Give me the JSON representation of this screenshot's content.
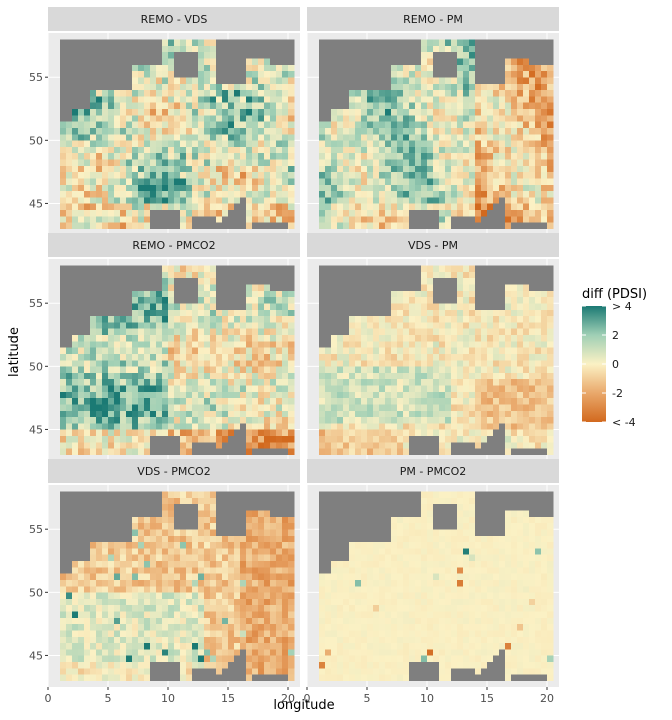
{
  "chart_data": {
    "type": "heatmap",
    "title": "",
    "xlabel": "longitude",
    "ylabel": "latitude",
    "xlim": [
      0,
      21
    ],
    "ylim": [
      42.5,
      58.5
    ],
    "x_ticks": [
      0,
      5,
      10,
      15,
      20
    ],
    "y_ticks": [
      45,
      50,
      55
    ],
    "grid": true,
    "panels": [
      {
        "label": "REMO - VDS",
        "pattern": "mixed_wet"
      },
      {
        "label": "REMO - PM",
        "pattern": "mixed_wet_dry_east"
      },
      {
        "label": "REMO - PMCO2",
        "pattern": "mixed"
      },
      {
        "label": "VDS - PM",
        "pattern": "mostly_neutral"
      },
      {
        "label": "VDS - PMCO2",
        "pattern": "dry_east"
      },
      {
        "label": "PM - PMCO2",
        "pattern": "near_zero"
      }
    ],
    "legend": {
      "title": "diff (PDSI)",
      "placement": "right",
      "range": [
        -4,
        4
      ],
      "tick_labels": [
        "> 4",
        "2",
        "0",
        "-2",
        "< -4"
      ],
      "tick_values": [
        4,
        2,
        0,
        -2,
        -4
      ],
      "colors": {
        "low": "#d2691e",
        "mid": "#fbf1c4",
        "high": "#1b7a74"
      }
    },
    "missing_color": "#7f7f7f"
  }
}
